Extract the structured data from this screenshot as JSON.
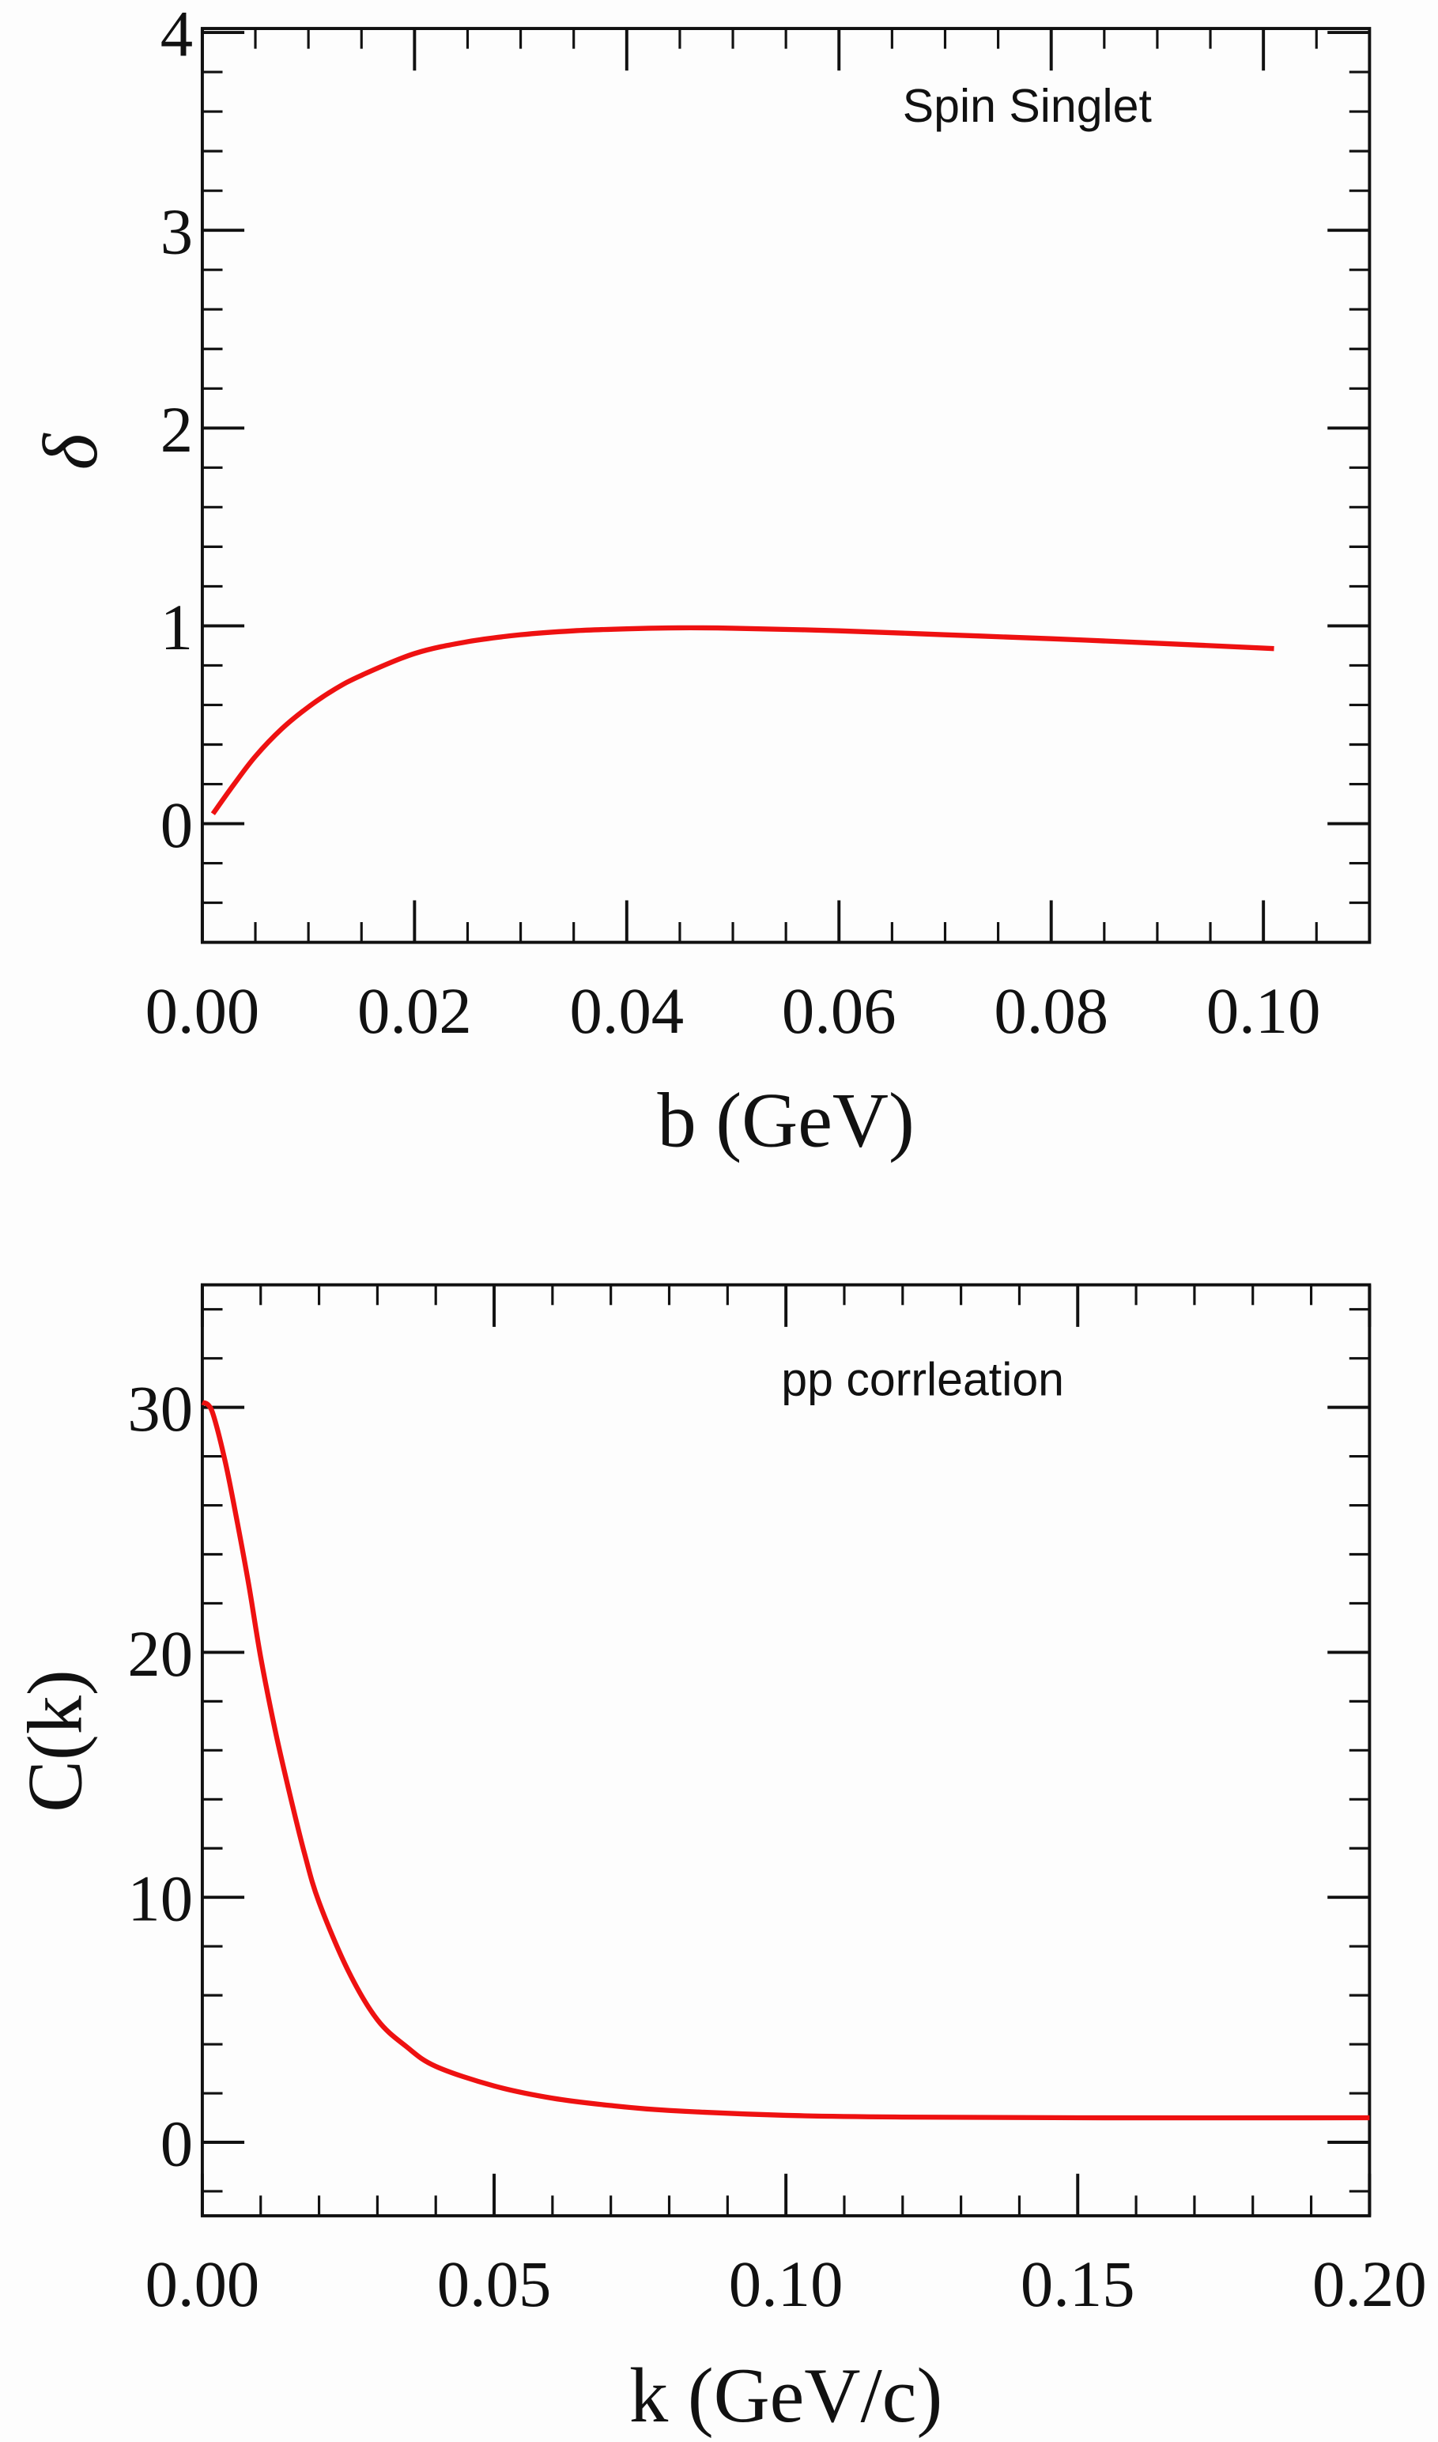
{
  "chart_data": [
    {
      "type": "line",
      "annotation": "Spin Singlet",
      "xlabel": "b (GeV)",
      "ylabel": "δ",
      "xlim": [
        0,
        0.11
      ],
      "ylim": [
        -0.6,
        4.02
      ],
      "xticks": [
        0.0,
        0.02,
        0.04,
        0.06,
        0.08,
        0.1
      ],
      "xtick_labels": [
        "0.00",
        "0.02",
        "0.04",
        "0.06",
        "0.08",
        "0.10"
      ],
      "xminor_step": 0.005,
      "yticks": [
        0,
        1,
        2,
        3,
        4
      ],
      "ytick_labels": [
        "0",
        "1",
        "2",
        "3",
        "4"
      ],
      "yminor_step": 0.2,
      "grid": false,
      "series": [
        {
          "color": "#ee1111",
          "x": [
            0.001,
            0.003,
            0.005,
            0.0075,
            0.01,
            0.0125,
            0.015,
            0.02,
            0.025,
            0.03,
            0.035,
            0.04,
            0.045,
            0.05,
            0.06,
            0.07,
            0.08,
            0.09,
            0.101
          ],
          "y": [
            0.05,
            0.2,
            0.34,
            0.48,
            0.59,
            0.68,
            0.75,
            0.86,
            0.92,
            0.955,
            0.975,
            0.985,
            0.99,
            0.988,
            0.975,
            0.955,
            0.935,
            0.912,
            0.885
          ]
        }
      ]
    },
    {
      "type": "line",
      "annotation": "pp corrleation",
      "xlabel": "k (GeV/c)",
      "ylabel": "C(k)",
      "xlim": [
        0,
        0.2
      ],
      "ylim": [
        -3,
        35
      ],
      "xticks": [
        0.0,
        0.05,
        0.1,
        0.15,
        0.2
      ],
      "xtick_labels": [
        "0.00",
        "0.05",
        "0.10",
        "0.15",
        "0.20"
      ],
      "xminor_step": 0.01,
      "yticks": [
        0,
        10,
        20,
        30
      ],
      "ytick_labels": [
        "0",
        "10",
        "20",
        "30"
      ],
      "yminor_step": 2,
      "grid": false,
      "series": [
        {
          "color": "#ee1111",
          "x": [
            0.0,
            0.001,
            0.002,
            0.004,
            0.006,
            0.008,
            0.01,
            0.0125,
            0.015,
            0.0175,
            0.02,
            0.025,
            0.03,
            0.035,
            0.04,
            0.05,
            0.06,
            0.07,
            0.08,
            0.1,
            0.12,
            0.15,
            0.2
          ],
          "y": [
            30.2,
            30.1,
            29.6,
            27.7,
            25.3,
            22.7,
            19.8,
            16.8,
            14.2,
            11.8,
            9.8,
            7.0,
            5.0,
            3.9,
            3.1,
            2.3,
            1.8,
            1.5,
            1.3,
            1.1,
            1.03,
            1.0,
            1.0
          ]
        }
      ]
    }
  ]
}
